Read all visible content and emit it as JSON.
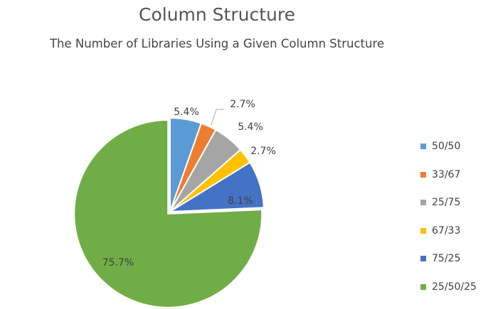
{
  "chart_data": {
    "type": "pie",
    "title": "Column Structure",
    "subtitle": "The Number of Libraries Using a Given Column Structure",
    "legend_position": "right",
    "slices": [
      {
        "label": "50/50",
        "value": 5.4,
        "display": "5.4%",
        "color": "#5b9bd5"
      },
      {
        "label": "33/67",
        "value": 2.7,
        "display": "2.7%",
        "color": "#ed7d31"
      },
      {
        "label": "25/75",
        "value": 5.4,
        "display": "5.4%",
        "color": "#a5a5a5"
      },
      {
        "label": "67/33",
        "value": 2.7,
        "display": "2.7%",
        "color": "#ffc000"
      },
      {
        "label": "75/25",
        "value": 8.1,
        "display": "8.1%",
        "color": "#4472c4"
      },
      {
        "label": "25/50/25",
        "value": 75.7,
        "display": "75.7%",
        "color": "#70ad47"
      }
    ]
  }
}
